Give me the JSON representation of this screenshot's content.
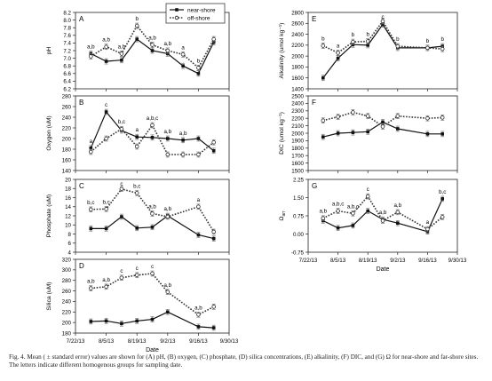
{
  "legend": [
    {
      "label": "near-shore",
      "style": "solid"
    },
    {
      "label": "off-shore",
      "style": "dotted"
    }
  ],
  "shared_x": {
    "xlabel": "Date",
    "ticks": [
      "7/22/13",
      "8/5/13",
      "8/19/13",
      "9/2/13",
      "9/16/13",
      "9/30/13"
    ],
    "dates": [
      "7/29/13",
      "8/5/13",
      "8/12/13",
      "8/19/13",
      "8/26/13",
      "9/2/13",
      "9/9/13",
      "9/16/13",
      "9/23/13"
    ]
  },
  "caption": "Fig. 4. Mean ( ± standard error) values are shown for (A) pH, (B) oxygen, (C) phosphate, (D) silica concentrations, (E) alkalinity, (F) DIC, and (G) Ω for near-shore and far-shore sites. The letters indicate different homogenous groups for sampling date.",
  "chart_data": [
    {
      "type": "line",
      "panel": "A",
      "ylabel": "pH",
      "ylim": [
        6.2,
        8.2
      ],
      "yticks": [
        "6.2",
        "6.4",
        "6.6",
        "6.8",
        "7.0",
        "7.2",
        "7.4",
        "7.6",
        "7.8",
        "8.0",
        "8.2"
      ],
      "x": [
        "7/29/13",
        "8/5/13",
        "8/12/13",
        "8/19/13",
        "8/26/13",
        "9/2/13",
        "9/9/13",
        "9/16/13",
        "9/23/13"
      ],
      "series": [
        {
          "name": "near-shore",
          "values": [
            7.12,
            6.92,
            6.95,
            7.5,
            7.2,
            7.12,
            6.8,
            6.6,
            7.42
          ]
        },
        {
          "name": "off-shore",
          "values": [
            7.05,
            7.3,
            7.12,
            7.85,
            7.35,
            7.2,
            7.1,
            6.75,
            7.5
          ]
        }
      ],
      "annotations": [
        "a,b",
        "a,b",
        "a,b",
        "b",
        "a,b",
        "a,b",
        "a",
        "b"
      ]
    },
    {
      "type": "line",
      "panel": "B",
      "ylabel": "Oxygen (uM)",
      "ylim": [
        140,
        280
      ],
      "yticks": [
        "140",
        "160",
        "180",
        "200",
        "220",
        "240",
        "260",
        "280"
      ],
      "x": [
        "7/29/13",
        "8/5/13",
        "8/12/13",
        "8/19/13",
        "8/26/13",
        "9/2/13",
        "9/9/13",
        "9/16/13",
        "9/23/13"
      ],
      "series": [
        {
          "name": "near-shore",
          "values": [
            182,
            250,
            215,
            203,
            202,
            200,
            197,
            200,
            177
          ]
        },
        {
          "name": "off-shore",
          "values": [
            175,
            200,
            218,
            185,
            225,
            170,
            170,
            170,
            193
          ]
        }
      ],
      "annotations": [
        "a",
        "c",
        "b,c",
        "a",
        "a,b,c",
        "a,b",
        "a,b"
      ]
    },
    {
      "type": "line",
      "panel": "C",
      "ylabel": "Phosphate (uM)",
      "ylim": [
        4,
        20
      ],
      "yticks": [
        "4",
        "6",
        "8",
        "10",
        "12",
        "14",
        "16",
        "18",
        "20"
      ],
      "x": [
        "7/29/13",
        "8/5/13",
        "8/12/13",
        "8/19/13",
        "8/26/13",
        "9/2/13",
        "9/9/13",
        "9/16/13",
        "9/23/13"
      ],
      "series": [
        {
          "name": "near-shore",
          "values": [
            9.2,
            9.2,
            11.8,
            9.3,
            9.5,
            12.0,
            null,
            7.8,
            7.0
          ]
        },
        {
          "name": "off-shore",
          "values": [
            13.4,
            13.5,
            17.9,
            17.0,
            12.5,
            11.8,
            null,
            14.0,
            8.5
          ]
        }
      ],
      "annotations": [
        "b,c",
        "b,c",
        "c",
        "b,c",
        "a,b",
        "a,b",
        "a"
      ]
    },
    {
      "type": "line",
      "panel": "D",
      "ylabel": "Silica (uM)",
      "ylim": [
        180,
        320
      ],
      "yticks": [
        "180",
        "200",
        "220",
        "240",
        "260",
        "280",
        "300",
        "320"
      ],
      "x": [
        "7/29/13",
        "8/5/13",
        "8/12/13",
        "8/19/13",
        "8/26/13",
        "9/2/13",
        "9/9/13",
        "9/16/13",
        "9/23/13"
      ],
      "series": [
        {
          "name": "near-shore",
          "values": [
            202,
            203,
            198,
            203,
            206,
            220,
            null,
            192,
            190
          ]
        },
        {
          "name": "off-shore",
          "values": [
            265,
            268,
            285,
            290,
            293,
            258,
            null,
            215,
            230
          ]
        }
      ],
      "annotations": [
        "a,b",
        "a,b",
        "c",
        "c",
        "c",
        "a,b",
        "a,b"
      ]
    },
    {
      "type": "line",
      "panel": "E",
      "ylabel": "Alkalinity (umol kg⁻¹)",
      "ylim": [
        1400,
        2800
      ],
      "yticks": [
        "1400",
        "1600",
        "1800",
        "2000",
        "2200",
        "2400",
        "2600",
        "2800"
      ],
      "x": [
        "7/29/13",
        "8/5/13",
        "8/12/13",
        "8/19/13",
        "8/26/13",
        "9/2/13",
        "9/9/13",
        "9/16/13",
        "9/23/13"
      ],
      "series": [
        {
          "name": "near-shore",
          "values": [
            1600,
            1960,
            2210,
            2200,
            2580,
            2150,
            null,
            2150,
            2180
          ]
        },
        {
          "name": "off-shore",
          "values": [
            2190,
            2060,
            2260,
            2270,
            2640,
            2180,
            null,
            2150,
            2130
          ]
        }
      ],
      "annotations": [
        "b",
        "a",
        "b",
        "b",
        "c",
        "b",
        "b",
        "b"
      ]
    },
    {
      "type": "line",
      "panel": "F",
      "ylabel": "DIC (umol kg⁻¹)",
      "ylim": [
        1500,
        2500
      ],
      "yticks": [
        "1500",
        "1600",
        "1700",
        "1800",
        "1900",
        "2000",
        "2100",
        "2200",
        "2300",
        "2400",
        "2500"
      ],
      "x": [
        "7/29/13",
        "8/5/13",
        "8/12/13",
        "8/19/13",
        "8/26/13",
        "9/2/13",
        "9/9/13",
        "9/16/13",
        "9/23/13"
      ],
      "series": [
        {
          "name": "near-shore",
          "values": [
            1950,
            2000,
            2010,
            2020,
            2150,
            2060,
            null,
            1990,
            1990
          ]
        },
        {
          "name": "off-shore",
          "values": [
            2170,
            2220,
            2280,
            2230,
            2090,
            2230,
            null,
            2200,
            2210
          ]
        }
      ]
    },
    {
      "type": "line",
      "panel": "G",
      "ylabel": "Ω_arr",
      "ylim": [
        -0.75,
        2.25
      ],
      "yticks": [
        "-0.75",
        "0.00",
        "0.75",
        "1.50",
        "2.25"
      ],
      "x": [
        "7/29/13",
        "8/5/13",
        "8/12/13",
        "8/19/13",
        "8/26/13",
        "9/2/13",
        "9/9/13",
        "9/16/13",
        "9/23/13"
      ],
      "series": [
        {
          "name": "near-shore",
          "values": [
            0.55,
            0.25,
            0.35,
            0.95,
            0.6,
            0.45,
            null,
            0.1,
            1.45
          ]
        },
        {
          "name": "off-shore",
          "values": [
            0.65,
            0.95,
            0.85,
            1.55,
            0.55,
            0.9,
            null,
            0.2,
            0.7
          ]
        }
      ],
      "annotations": [
        "a,b",
        "a,b,c",
        "a,b,c",
        "c",
        "a,b",
        "a,b",
        "a",
        "b,c"
      ]
    }
  ]
}
